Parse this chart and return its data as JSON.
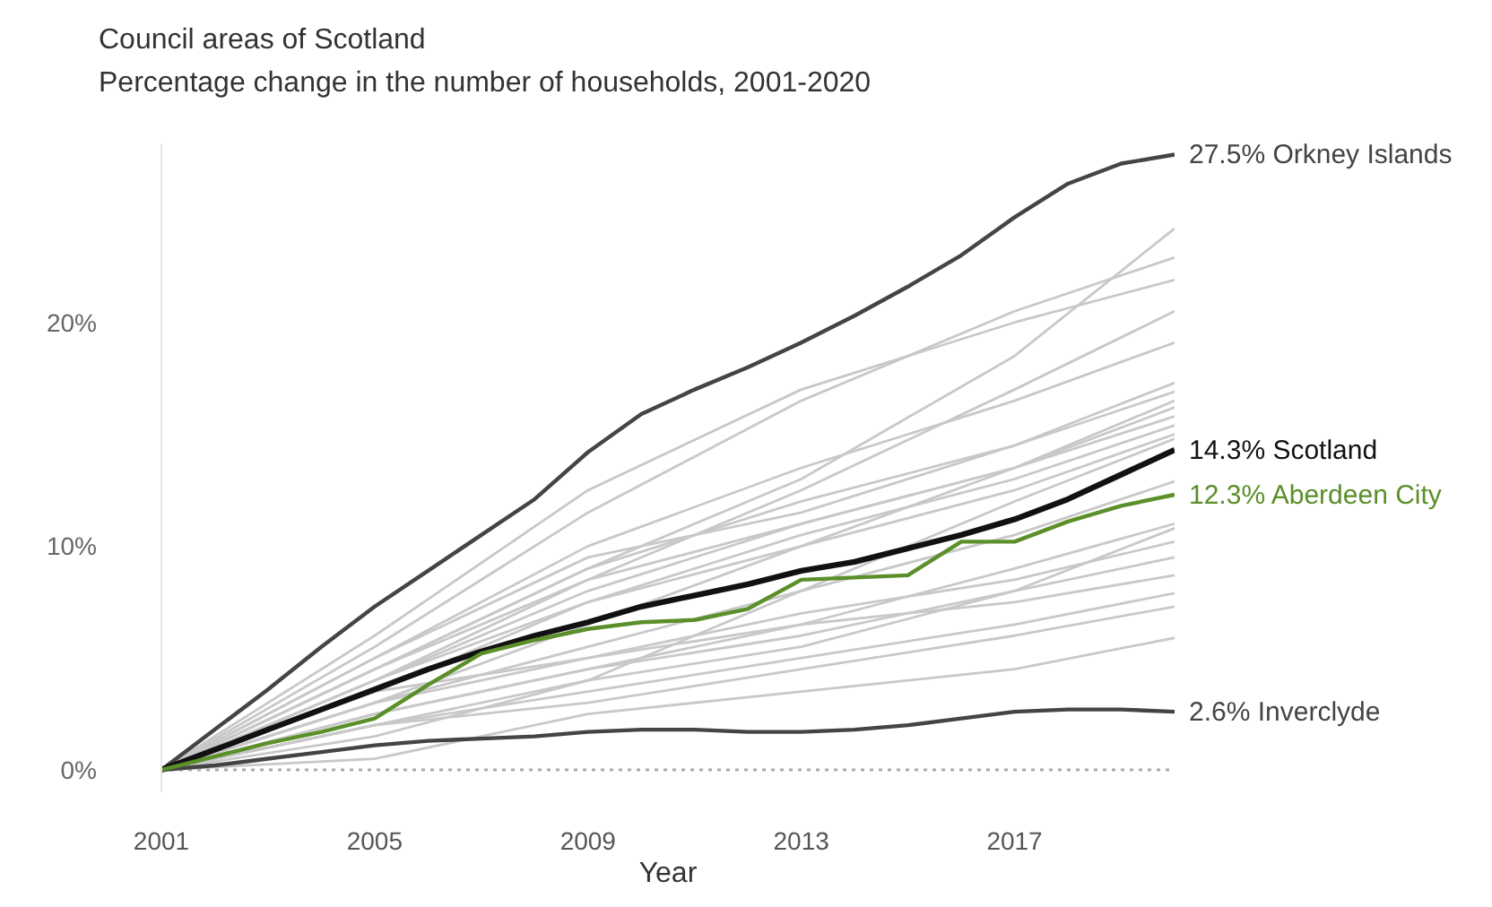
{
  "chart_data": {
    "type": "line",
    "title": "Council areas of Scotland",
    "subtitle": "Percentage change in the number of households, 2001-2020",
    "xlabel": "Year",
    "x": [
      2001,
      2002,
      2003,
      2004,
      2005,
      2006,
      2007,
      2008,
      2009,
      2010,
      2011,
      2012,
      2013,
      2014,
      2015,
      2016,
      2017,
      2018,
      2019,
      2020
    ],
    "xlim": [
      2001,
      2020
    ],
    "xticks": [
      2001,
      2005,
      2009,
      2013,
      2017
    ],
    "ylim": [
      -1,
      28
    ],
    "yticks": [
      {
        "value": 0,
        "label": "0%"
      },
      {
        "value": 10,
        "label": "10%"
      },
      {
        "value": 20,
        "label": "20%"
      }
    ],
    "grid": false,
    "legend": false,
    "marker": "none",
    "ref_lines": [
      {
        "axis": "y",
        "value": 0,
        "color": "#aaaaaa",
        "line_style": "dotted"
      }
    ],
    "series": [
      {
        "color": "#c8c8c8",
        "x": [
          2001,
          2005,
          2009,
          2013,
          2017,
          2020
        ],
        "values": [
          0,
          4.5,
          9.0,
          13.0,
          18.5,
          24.2
        ]
      },
      {
        "color": "#c8c8c8",
        "x": [
          2001,
          2005,
          2009,
          2013,
          2017,
          2020
        ],
        "values": [
          0,
          5.5,
          11.5,
          16.5,
          20.5,
          22.9
        ]
      },
      {
        "color": "#c8c8c8",
        "x": [
          2001,
          2005,
          2009,
          2013,
          2017,
          2020
        ],
        "values": [
          0,
          6,
          12.5,
          17,
          20,
          21.9
        ]
      },
      {
        "color": "#c8c8c8",
        "x": [
          2001,
          2005,
          2009,
          2013,
          2017,
          2020
        ],
        "values": [
          0,
          4,
          8.5,
          12.5,
          17,
          20.5
        ]
      },
      {
        "color": "#c8c8c8",
        "x": [
          2001,
          2005,
          2009,
          2013,
          2017,
          2020
        ],
        "values": [
          0,
          5,
          10,
          13.5,
          16.5,
          19.1
        ]
      },
      {
        "color": "#c8c8c8",
        "x": [
          2001,
          2005,
          2009,
          2013,
          2017,
          2020
        ],
        "values": [
          0,
          4.5,
          9,
          12,
          14.5,
          17.3
        ]
      },
      {
        "color": "#c8c8c8",
        "x": [
          2001,
          2005,
          2009,
          2013,
          2017,
          2020
        ],
        "values": [
          0,
          5,
          9.5,
          11.5,
          14.5,
          16.9
        ]
      },
      {
        "color": "#c8c8c8",
        "x": [
          2001,
          2005,
          2009,
          2013,
          2017,
          2020
        ],
        "values": [
          0,
          3,
          6.5,
          10,
          13.5,
          16.5
        ]
      },
      {
        "color": "#c8c8c8",
        "x": [
          2001,
          2005,
          2009,
          2013,
          2017,
          2020
        ],
        "values": [
          0,
          4,
          8,
          11,
          13.5,
          16.2
        ]
      },
      {
        "color": "#c8c8c8",
        "x": [
          2001,
          2005,
          2009,
          2013,
          2017,
          2020
        ],
        "values": [
          0,
          4.5,
          8.5,
          11,
          13.5,
          15.8
        ]
      },
      {
        "color": "#c8c8c8",
        "x": [
          2001,
          2005,
          2009,
          2013,
          2017,
          2020
        ],
        "values": [
          0,
          3.5,
          7.5,
          10.5,
          13,
          15.4
        ]
      },
      {
        "color": "#c8c8c8",
        "x": [
          2001,
          2005,
          2009,
          2013,
          2017,
          2020
        ],
        "values": [
          0,
          4,
          7.5,
          10,
          12.5,
          15.0
        ]
      },
      {
        "color": "#c8c8c8",
        "x": [
          2001,
          2005,
          2009,
          2013,
          2017,
          2020
        ],
        "values": [
          0,
          1.5,
          4,
          8,
          12,
          14.8
        ]
      },
      {
        "color": "#c8c8c8",
        "x": [
          2001,
          2005,
          2009,
          2013,
          2017,
          2020
        ],
        "values": [
          0,
          3,
          5.5,
          8,
          10.5,
          12.9
        ]
      },
      {
        "color": "#c8c8c8",
        "x": [
          2001,
          2005,
          2009,
          2013,
          2017,
          2020
        ],
        "values": [
          0,
          2,
          4,
          5.5,
          8,
          10.8
        ]
      },
      {
        "color": "#c8c8c8",
        "x": [
          2001,
          2005,
          2009,
          2013,
          2017,
          2020
        ],
        "values": [
          0,
          2.5,
          4.5,
          6.5,
          9,
          11.0
        ]
      },
      {
        "color": "#c8c8c8",
        "x": [
          2001,
          2005,
          2009,
          2013,
          2017,
          2020
        ],
        "values": [
          0,
          3,
          5,
          7,
          8.5,
          10.2
        ]
      },
      {
        "color": "#c8c8c8",
        "x": [
          2001,
          2005,
          2009,
          2013,
          2017,
          2020
        ],
        "values": [
          0,
          2.5,
          4.5,
          6,
          8,
          9.5
        ]
      },
      {
        "color": "#c8c8c8",
        "x": [
          2001,
          2005,
          2009,
          2013,
          2017,
          2020
        ],
        "values": [
          0,
          3.5,
          5,
          6.5,
          7.5,
          8.7
        ]
      },
      {
        "color": "#c8c8c8",
        "x": [
          2001,
          2005,
          2009,
          2013,
          2017,
          2020
        ],
        "values": [
          0,
          2,
          3.5,
          5,
          6.5,
          7.9
        ]
      },
      {
        "color": "#c8c8c8",
        "x": [
          2001,
          2005,
          2009,
          2013,
          2017,
          2020
        ],
        "values": [
          0,
          2,
          3,
          4.5,
          6,
          7.3
        ]
      },
      {
        "color": "#c8c8c8",
        "x": [
          2001,
          2005,
          2009,
          2013,
          2017,
          2020
        ],
        "values": [
          0,
          0.5,
          2.5,
          3.5,
          4.5,
          5.9
        ]
      },
      {
        "name": "2.6% Inverclyde",
        "color": "#444444",
        "values": [
          0,
          0.2,
          0.5,
          0.8,
          1.1,
          1.3,
          1.4,
          1.5,
          1.7,
          1.8,
          1.8,
          1.7,
          1.7,
          1.8,
          2.0,
          2.3,
          2.6,
          2.7,
          2.7,
          2.6
        ]
      },
      {
        "name": "27.5% Orkney Islands",
        "color": "#444444",
        "values": [
          0,
          1.8,
          3.6,
          5.5,
          7.3,
          8.9,
          10.5,
          12.1,
          14.2,
          15.9,
          17.0,
          18.0,
          19.1,
          20.3,
          21.6,
          23.0,
          24.7,
          26.2,
          27.1,
          27.5
        ]
      },
      {
        "name": "14.3% Scotland",
        "color": "#111111",
        "values": [
          0,
          0.9,
          1.8,
          2.7,
          3.6,
          4.5,
          5.3,
          6.0,
          6.6,
          7.3,
          7.8,
          8.3,
          8.9,
          9.3,
          9.9,
          10.5,
          11.2,
          12.1,
          13.2,
          14.3
        ]
      },
      {
        "name": "12.3% Aberdeen City",
        "color": "#5a8f29",
        "values": [
          0,
          0.6,
          1.2,
          1.7,
          2.3,
          3.8,
          5.2,
          5.8,
          6.3,
          6.6,
          6.7,
          7.2,
          8.5,
          8.6,
          8.7,
          10.2,
          10.2,
          11.1,
          11.8,
          12.3
        ]
      }
    ]
  }
}
